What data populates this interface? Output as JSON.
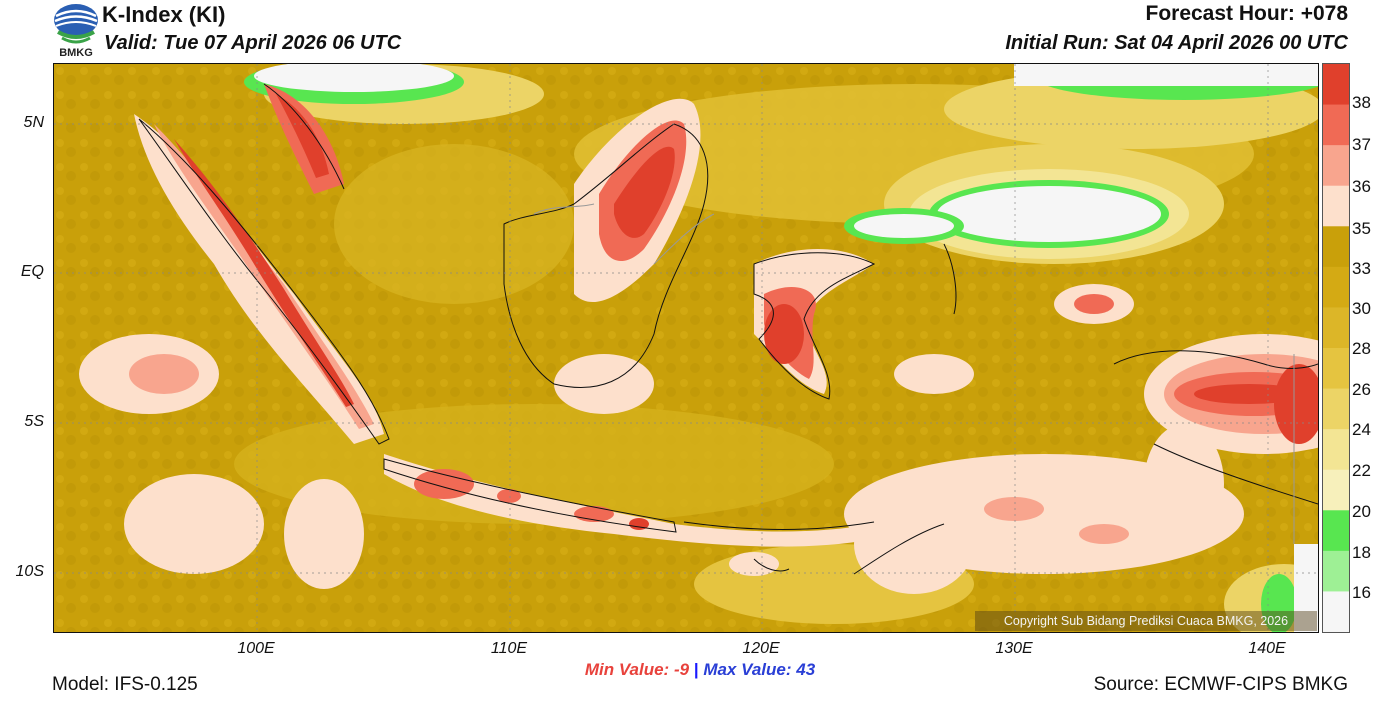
{
  "header": {
    "title": "K-Index (KI)",
    "valid": "Valid: Tue 07 April 2026 06 UTC",
    "forecast_hour": "Forecast Hour: +078",
    "initial_run": "Initial Run: Sat 04 April 2026 00 UTC",
    "logo_text": "BMKG"
  },
  "axes": {
    "y_ticks": [
      "5N",
      "EQ",
      "5S",
      "10S"
    ],
    "x_ticks": [
      "100E",
      "110E",
      "120E",
      "130E",
      "140E"
    ]
  },
  "colorbar": {
    "labels": [
      "38",
      "37",
      "36",
      "35",
      "33",
      "30",
      "28",
      "26",
      "24",
      "22",
      "20",
      "18",
      "16"
    ],
    "colors": [
      "#e0402c",
      "#f06a55",
      "#f8a58e",
      "#fde0cc",
      "#c9a00a",
      "#d4aa14",
      "#dcb628",
      "#e5c440",
      "#ecd466",
      "#f3e594",
      "#f7f0bb",
      "#58e650",
      "#9ef095",
      "#f6f6f6"
    ]
  },
  "stats": {
    "min_label": "Min Value:",
    "min_value": "-9",
    "separator": "|",
    "max_label": "Max Value:",
    "max_value": "43"
  },
  "footer": {
    "model": "Model: IFS-0.125",
    "source": "Source: ECMWF-CIPS BMKG",
    "copyright": "Copyright Sub Bidang Prediksi Cuaca BMKG, 2026"
  }
}
